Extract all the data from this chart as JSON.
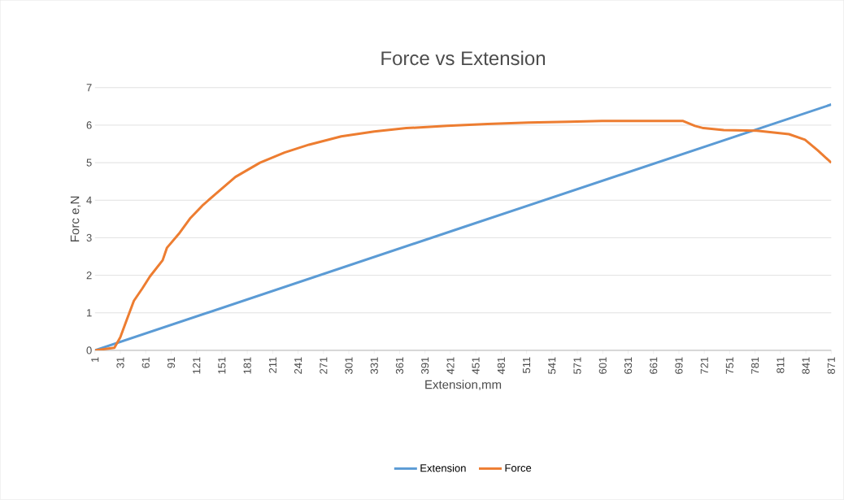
{
  "chart_data": {
    "type": "line",
    "title": "Force vs Extension",
    "xlabel": "Extension,mm",
    "ylabel": "Forc e,N",
    "xlim": [
      1,
      871
    ],
    "ylim": [
      0,
      7
    ],
    "xticks": [
      1,
      31,
      61,
      91,
      121,
      151,
      181,
      211,
      241,
      271,
      301,
      331,
      361,
      391,
      421,
      451,
      481,
      511,
      541,
      571,
      601,
      631,
      661,
      691,
      721,
      751,
      781,
      811,
      841,
      871
    ],
    "yticks": [
      0,
      1,
      2,
      3,
      4,
      5,
      6,
      7
    ],
    "grid": "y",
    "legend": "bottom",
    "series": [
      {
        "name": "Extension",
        "color": "#5b9bd5",
        "x": [
          1,
          436,
          871
        ],
        "values": [
          0,
          3.28,
          6.55
        ]
      },
      {
        "name": "Force",
        "color": "#ed7d31",
        "x": [
          1,
          24,
          31,
          38,
          47,
          57,
          66,
          81,
          86,
          100,
          114,
          129,
          148,
          167,
          196,
          225,
          254,
          292,
          331,
          369,
          417,
          465,
          513,
          561,
          600,
          658,
          696,
          710,
          720,
          744,
          783,
          821,
          840,
          855,
          871
        ],
        "values": [
          0,
          0.07,
          0.35,
          0.78,
          1.32,
          1.65,
          1.97,
          2.4,
          2.73,
          3.1,
          3.53,
          3.88,
          4.25,
          4.62,
          5.0,
          5.27,
          5.48,
          5.7,
          5.83,
          5.92,
          5.98,
          6.03,
          6.07,
          6.09,
          6.11,
          6.11,
          6.11,
          5.98,
          5.92,
          5.87,
          5.85,
          5.76,
          5.61,
          5.33,
          5.0
        ]
      }
    ]
  }
}
